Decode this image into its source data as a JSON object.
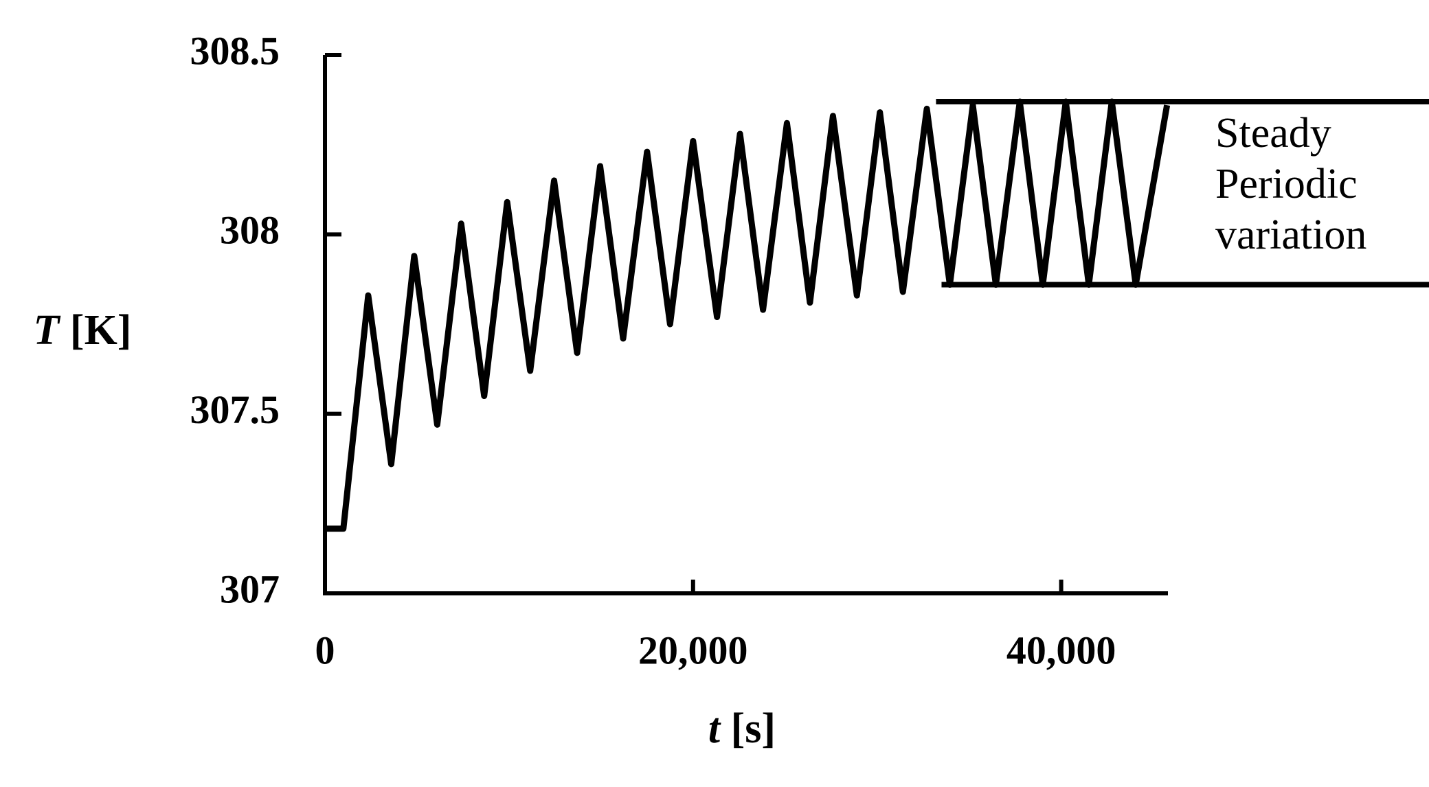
{
  "chart_data": {
    "type": "line",
    "x_label": "t [s]",
    "y_label": "T [K]",
    "x": [
      0,
      1000,
      2350,
      3600,
      4850,
      6100,
      7400,
      8650,
      9900,
      11150,
      12450,
      13700,
      14950,
      16200,
      17500,
      18750,
      20000,
      21300,
      22550,
      23800,
      25100,
      26350,
      27600,
      28900,
      30150,
      31400,
      32700,
      33950,
      35200,
      36450,
      37750,
      39000,
      40250,
      41500,
      42750,
      44050,
      45750
    ],
    "series": [
      {
        "color": "#000000",
        "values": [
          307.18,
          307.18,
          307.83,
          307.36,
          307.94,
          307.47,
          308.03,
          307.55,
          308.09,
          307.62,
          308.15,
          307.67,
          308.19,
          307.71,
          308.23,
          307.75,
          308.26,
          307.77,
          308.28,
          307.79,
          308.31,
          307.81,
          308.33,
          307.83,
          308.34,
          307.84,
          308.35,
          307.86,
          308.36,
          307.86,
          308.37,
          307.86,
          308.37,
          307.86,
          308.37,
          307.86,
          308.36
        ]
      }
    ],
    "xlim": [
      0,
      45800
    ],
    "ylim": [
      307,
      308.5
    ],
    "xticks": [
      0,
      {
        "value": 20000,
        "label": "20,000"
      },
      {
        "value": 40000,
        "label": "40,000"
      }
    ],
    "yticks": [
      307,
      307.5,
      308,
      308.5
    ],
    "reference_lines": [
      {
        "value": 308.37,
        "x_start": 33200,
        "x_end": 60000
      },
      {
        "value": 307.86,
        "x_start": 33500,
        "x_end": 60000
      }
    ],
    "annotation": [
      "Steady",
      "Periodic",
      "variation"
    ]
  }
}
